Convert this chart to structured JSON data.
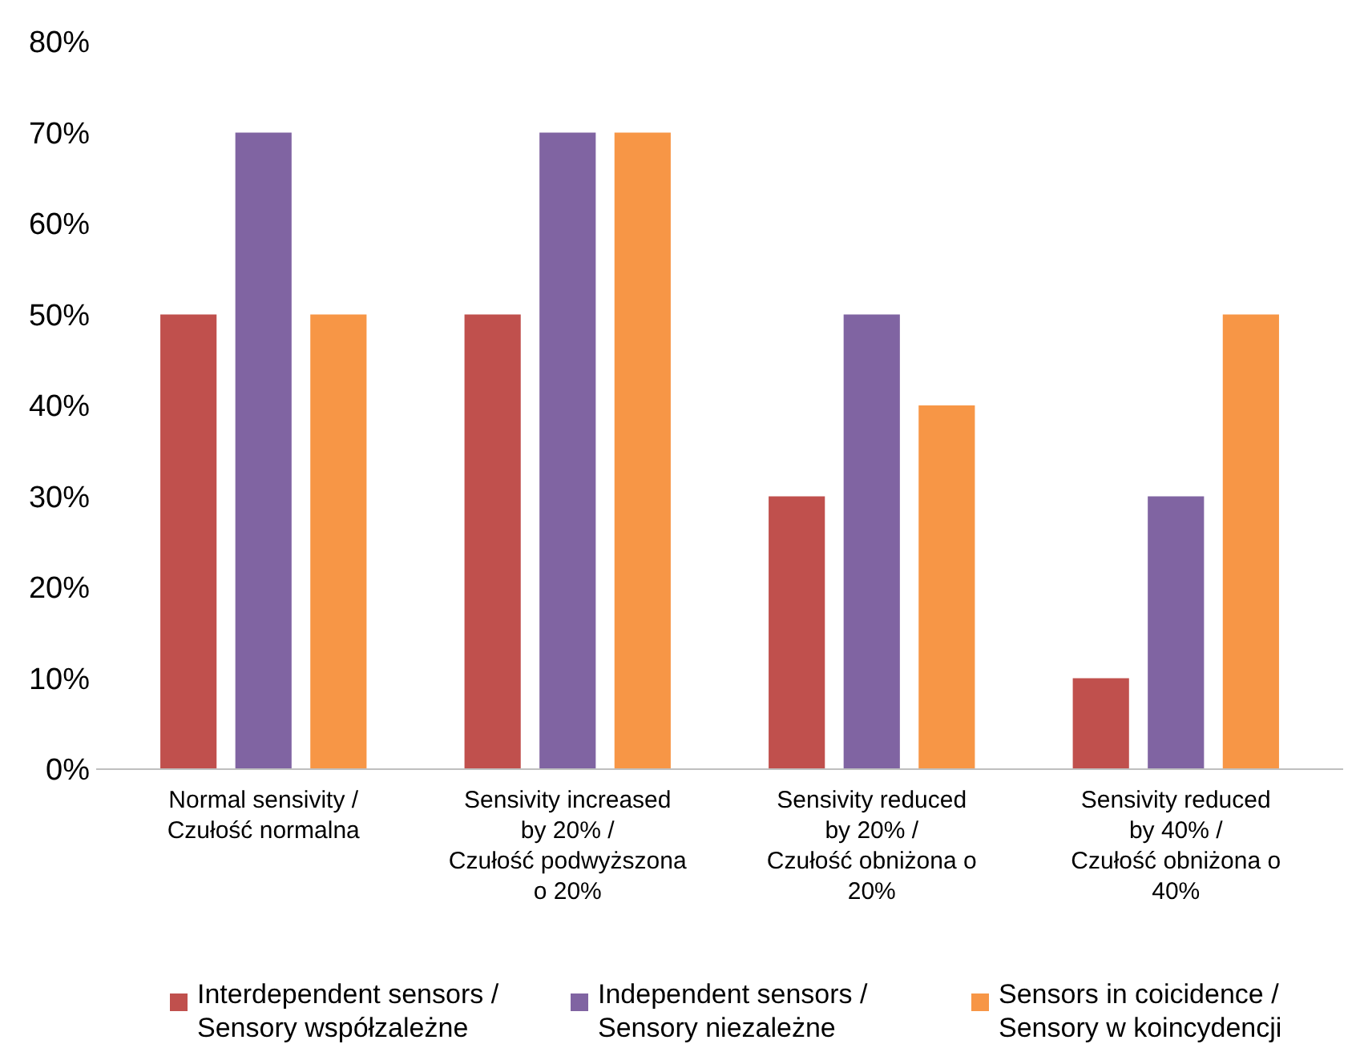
{
  "chart_data": {
    "type": "bar",
    "categories": [
      "Normal sensivity / Czułość normalna",
      "Sensivity increased by 20% / Czułość podwyższona o 20%",
      "Sensivity reduced by 20% / Czułość obniżona o 20%",
      "Sensivity reduced by 40% / Czułość obniżona o 40%"
    ],
    "series": [
      {
        "name": "Interdependent sensors / Sensory współzależne",
        "color": "#c0504d",
        "values": [
          50,
          50,
          30,
          10
        ]
      },
      {
        "name": "Independent sensors / Sensory niezależne",
        "color": "#8064a2",
        "values": [
          70,
          70,
          50,
          30
        ]
      },
      {
        "name": "Sensors in coicidence / Sensory w koincydencji",
        "color": "#f79646",
        "values": [
          50,
          70,
          40,
          50
        ]
      }
    ],
    "ylim": [
      0,
      80
    ],
    "yticks": [
      {
        "value": 0,
        "label": "0%"
      },
      {
        "value": 10,
        "label": "10%"
      },
      {
        "value": 20,
        "label": "20%"
      },
      {
        "value": 30,
        "label": "30%"
      },
      {
        "value": 40,
        "label": "40%"
      },
      {
        "value": 50,
        "label": "50%"
      },
      {
        "value": 60,
        "label": "60%"
      },
      {
        "value": 70,
        "label": "70%"
      },
      {
        "value": 80,
        "label": "80%"
      }
    ],
    "grid": false,
    "legend": "bottom"
  }
}
